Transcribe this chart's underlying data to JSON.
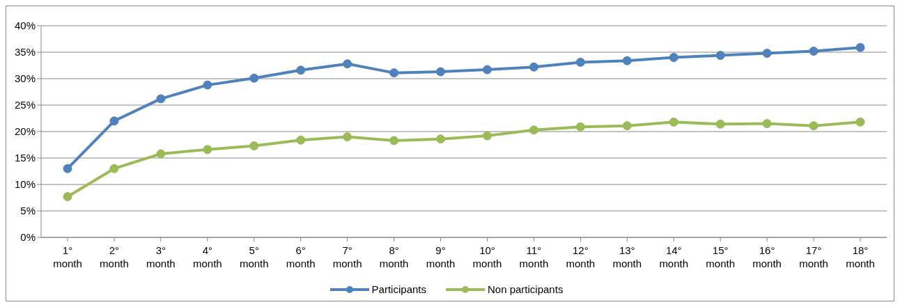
{
  "chart_data": {
    "type": "line",
    "categories": [
      "1° month",
      "2° month",
      "3° month",
      "4° month",
      "5° month",
      "6° month",
      "7° month",
      "8° month",
      "9° month",
      "10° month",
      "11° month",
      "12° month",
      "13° month",
      "14° month",
      "15° month",
      "16° month",
      "17° month",
      "18° month"
    ],
    "series": [
      {
        "name": "Participants",
        "color": "#4f81bd",
        "values": [
          13.0,
          22.0,
          26.2,
          28.8,
          30.1,
          31.6,
          32.8,
          31.1,
          31.3,
          31.7,
          32.2,
          33.1,
          33.4,
          34.0,
          34.4,
          34.8,
          35.2,
          35.9
        ]
      },
      {
        "name": "Non participants",
        "color": "#9bbb59",
        "values": [
          7.7,
          13.0,
          15.8,
          16.6,
          17.3,
          18.4,
          19.0,
          18.3,
          18.6,
          19.2,
          20.3,
          20.9,
          21.1,
          21.8,
          21.4,
          21.5,
          21.1,
          21.8
        ]
      }
    ],
    "ylim": [
      0,
      40
    ],
    "yticks": [
      {
        "value": 0,
        "label": "0%"
      },
      {
        "value": 5,
        "label": "5%"
      },
      {
        "value": 10,
        "label": "10%"
      },
      {
        "value": 15,
        "label": "15%"
      },
      {
        "value": 20,
        "label": "20%"
      },
      {
        "value": 25,
        "label": "25%"
      },
      {
        "value": 30,
        "label": "30%"
      },
      {
        "value": 35,
        "label": "35%"
      },
      {
        "value": 40,
        "label": "40%"
      }
    ],
    "grid": "y",
    "legend": "bottom",
    "marker": "circle",
    "line_style": "solid"
  }
}
